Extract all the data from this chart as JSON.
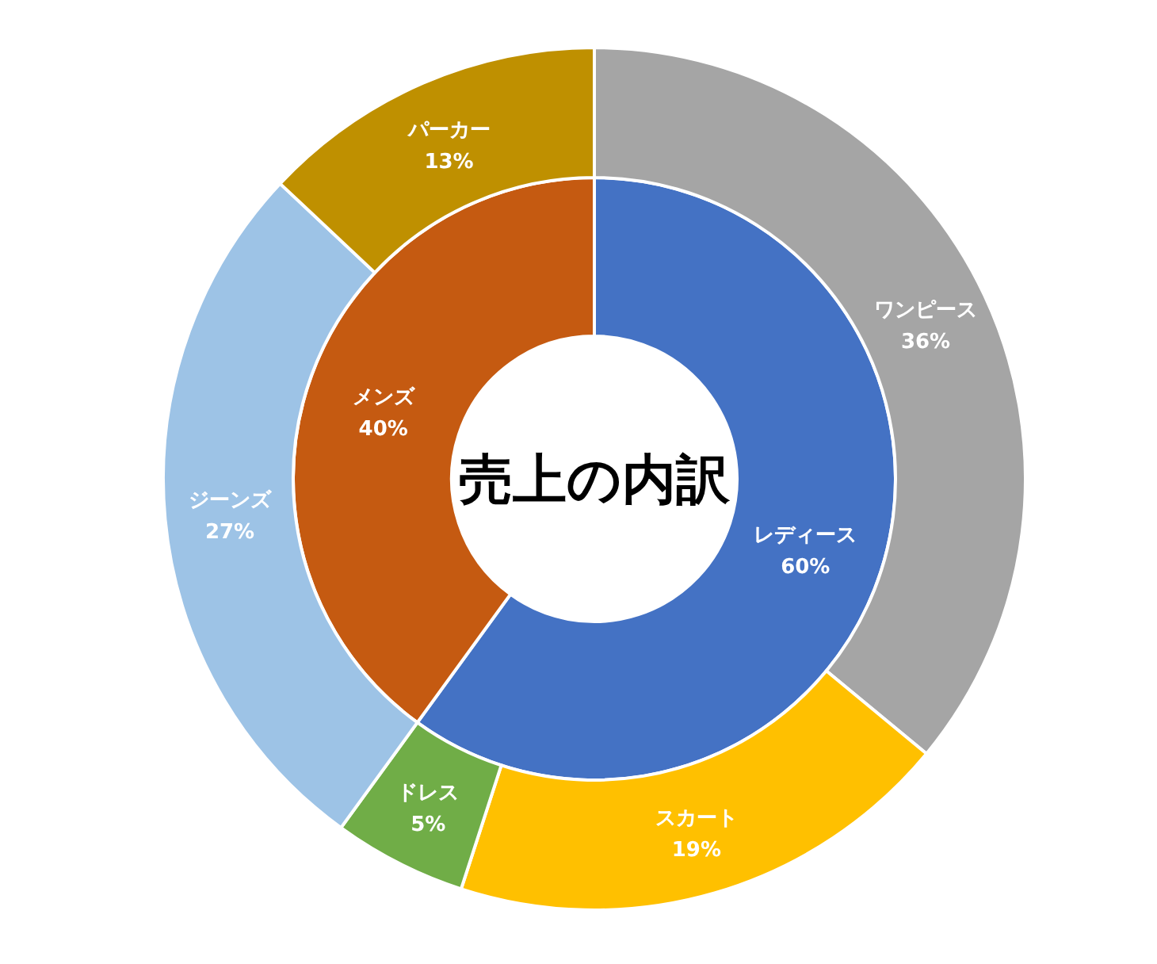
{
  "chart_data": [
    {
      "type": "donut",
      "title": "売上の内訳",
      "categories": [
        "レディース",
        "メンズ"
      ],
      "values": [
        60,
        40
      ],
      "colors": [
        "#4472c4",
        "#c55a11"
      ],
      "value_labels": [
        "60%",
        "40%"
      ]
    },
    {
      "type": "donut",
      "categories": [
        "ワンピース",
        "スカート",
        "ドレス",
        "ジーンズ",
        "パーカー"
      ],
      "values": [
        36,
        19,
        5,
        27,
        13
      ],
      "colors": [
        "#a5a5a5",
        "#ffc000",
        "#70ad47",
        "#9dc3e6",
        "#bf9000"
      ],
      "value_labels": [
        "36%",
        "19%",
        "5%",
        "27%",
        "13%"
      ]
    }
  ]
}
